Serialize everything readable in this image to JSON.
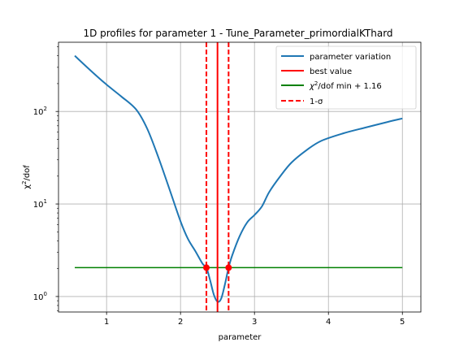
{
  "chart_data": {
    "type": "line",
    "title": "1D profiles for parameter 1 - Tune_Parameter_primordialKThard",
    "xlabel": "parameter",
    "ylabel_base": "χ",
    "ylabel_sup": "2",
    "ylabel_rest": "/dof",
    "x_ticks": [
      {
        "value": 1,
        "label": "1"
      },
      {
        "value": 2,
        "label": "2"
      },
      {
        "value": 3,
        "label": "3"
      },
      {
        "value": 4,
        "label": "4"
      },
      {
        "value": 5,
        "label": "5"
      }
    ],
    "y_ticks": [
      {
        "value": 1,
        "base": "10",
        "exp": "0"
      },
      {
        "value": 10,
        "base": "10",
        "exp": "1"
      },
      {
        "value": 100,
        "base": "10",
        "exp": "2"
      }
    ],
    "xlim": [
      0.35,
      5.25
    ],
    "ylim": [
      0.68,
      560
    ],
    "yscale": "log",
    "grid": true,
    "legend_position": "top-right",
    "colors": {
      "variation": "#1f77b4",
      "best": "#ff0000",
      "threshold": "#008000",
      "sigma": "#ff0000"
    },
    "series": [
      {
        "name": "parameter variation",
        "x": [
          0.57,
          0.8,
          1.0,
          1.2,
          1.4,
          1.55,
          1.7,
          1.85,
          2.0,
          2.1,
          2.2,
          2.3,
          2.35,
          2.4,
          2.45,
          2.5,
          2.55,
          2.6,
          2.65,
          2.7,
          2.8,
          2.9,
          3.0,
          3.1,
          3.2,
          3.35,
          3.5,
          3.7,
          3.9,
          4.2,
          4.5,
          4.8,
          5.0
        ],
        "y": [
          400,
          270,
          195,
          145,
          105,
          65,
          32,
          14.5,
          6.5,
          4.2,
          3.1,
          2.25,
          2.05,
          1.5,
          1.05,
          0.88,
          0.95,
          1.35,
          2.05,
          2.8,
          4.5,
          6.3,
          7.6,
          9.4,
          13.5,
          20,
          28,
          38,
          48,
          58,
          67,
          77,
          84
        ]
      }
    ],
    "best_value": {
      "name": "best value",
      "x": 2.5
    },
    "threshold_line": {
      "name_pre": "χ",
      "name_sup": "2",
      "name_post": "/dof min + 1.16",
      "y": 2.05,
      "x_start": 0.57,
      "x_end": 5.0
    },
    "sigma_lines": {
      "name": "1-σ",
      "x": [
        2.35,
        2.65
      ]
    },
    "intersection_points": [
      {
        "x": 2.35,
        "y": 2.05
      },
      {
        "x": 2.65,
        "y": 2.05
      }
    ]
  }
}
